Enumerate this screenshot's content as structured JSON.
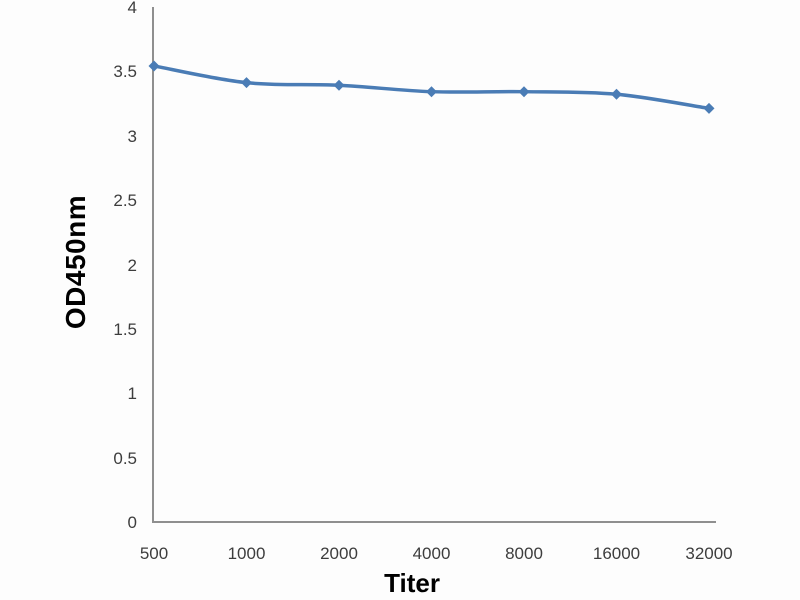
{
  "chart_data": {
    "type": "line",
    "title": "",
    "xlabel": "Titer",
    "ylabel": "OD450nm",
    "categories": [
      "500",
      "1000",
      "2000",
      "4000",
      "8000",
      "16000",
      "32000"
    ],
    "series": [
      {
        "name": "OD450nm",
        "values": [
          3.55,
          3.42,
          3.4,
          3.35,
          3.35,
          3.33,
          3.22
        ]
      }
    ],
    "ylim": [
      0,
      4
    ],
    "ytick_step": 0.5,
    "yticks": [
      "0",
      "0.5",
      "1",
      "1.5",
      "2",
      "2.5",
      "3",
      "3.5",
      "4"
    ],
    "grid": false,
    "legend": "none",
    "line_style": "smooth",
    "marker": "diamond",
    "colors": {
      "line": "#4a7cb5",
      "marker": "#4a7cb5",
      "axis": "#8f8f8f",
      "tick_label": "#3d3d3d",
      "axis_title": "#000000",
      "background": "#fdfdfd"
    }
  }
}
